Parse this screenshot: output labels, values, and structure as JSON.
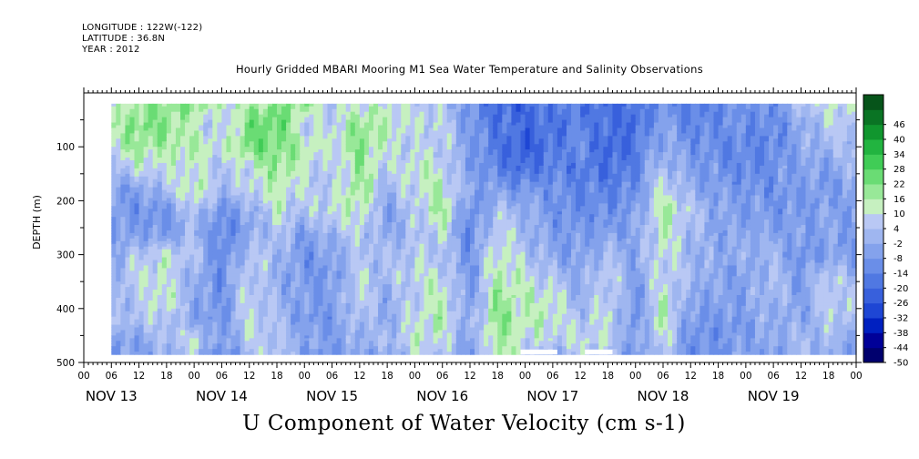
{
  "header": {
    "longitude": "LONGITUDE : 122W(-122)",
    "latitude": "LATITUDE : 36.8N",
    "year": "YEAR : 2012"
  },
  "chart_data": {
    "type": "heatmap",
    "title": "Hourly Gridded MBARI Mooring M1 Sea Water Temperature and Salinity Observations",
    "xlabel": "U Component of Water Velocity (cm s-1)",
    "ylabel": "DEPTH (m)",
    "ylim": [
      500,
      0
    ],
    "y_ticks": [
      100,
      200,
      300,
      400,
      500
    ],
    "y_tick_labels": [
      "100",
      "200",
      "300",
      "400",
      "500"
    ],
    "x_range_hours": [
      0,
      168
    ],
    "hour_tick_labels": [
      "00",
      "06",
      "12",
      "18",
      "00",
      "06",
      "12",
      "18",
      "00",
      "06",
      "12",
      "18",
      "00",
      "06",
      "12",
      "18",
      "00",
      "06",
      "12",
      "18",
      "00",
      "06",
      "12",
      "18",
      "00",
      "06",
      "12",
      "18",
      "00"
    ],
    "day_labels": [
      "NOV 13",
      "NOV 14",
      "NOV 15",
      "NOV 16",
      "NOV 17",
      "NOV 18",
      "NOV 19"
    ],
    "colorbar": {
      "levels": [
        "46",
        "40",
        "34",
        "28",
        "22",
        "16",
        "10",
        "4",
        "-2",
        "-8",
        "-14",
        "-20",
        "-26",
        "-32",
        "-38",
        "-44",
        "-50"
      ],
      "min": -50,
      "max": 52,
      "step": 6
    },
    "data_extent": {
      "depth_top": 20,
      "depth_bottom": 485,
      "hour_start": 6,
      "hour_end": 168
    },
    "missing_segments": [
      {
        "hour_start": 95,
        "hour_end": 103,
        "depth_top": 476,
        "depth_bottom": 485
      },
      {
        "hour_start": 109,
        "hour_end": 115,
        "depth_top": 476,
        "depth_bottom": 485
      }
    ],
    "columns": [
      {
        "hour": 6,
        "values": [
          8,
          14,
          14,
          2,
          -6,
          -6,
          -8,
          -4,
          2,
          0,
          0,
          -6,
          -6
        ]
      },
      {
        "hour": 12,
        "values": [
          18,
          22,
          18,
          10,
          -6,
          -10,
          -6,
          6,
          10,
          6,
          6,
          -4,
          -6
        ]
      },
      {
        "hour": 18,
        "values": [
          20,
          22,
          16,
          10,
          4,
          -8,
          -8,
          10,
          10,
          14,
          6,
          4,
          -2
        ]
      },
      {
        "hour": 24,
        "values": [
          22,
          10,
          16,
          10,
          16,
          6,
          2,
          6,
          -2,
          -2,
          -4,
          10,
          6
        ]
      },
      {
        "hour": 30,
        "values": [
          10,
          4,
          10,
          4,
          2,
          -10,
          -14,
          -14,
          -10,
          -10,
          -8,
          -8,
          -14
        ]
      },
      {
        "hour": 36,
        "values": [
          16,
          22,
          24,
          10,
          8,
          -2,
          -4,
          6,
          10,
          10,
          10,
          6,
          4
        ]
      },
      {
        "hour": 42,
        "values": [
          20,
          28,
          22,
          20,
          14,
          10,
          6,
          4,
          -2,
          0,
          4,
          6,
          6
        ]
      },
      {
        "hour": 48,
        "values": [
          20,
          6,
          16,
          10,
          8,
          4,
          -6,
          -10,
          -8,
          -6,
          -8,
          -2,
          -6
        ]
      },
      {
        "hour": 54,
        "values": [
          4,
          8,
          10,
          4,
          6,
          10,
          2,
          -4,
          -8,
          -6,
          -8,
          -6,
          -10
        ]
      },
      {
        "hour": 60,
        "values": [
          12,
          20,
          22,
          18,
          20,
          14,
          8,
          4,
          8,
          10,
          6,
          0,
          -2
        ]
      },
      {
        "hour": 66,
        "values": [
          10,
          14,
          10,
          6,
          0,
          -6,
          -4,
          4,
          2,
          -2,
          -4,
          2,
          -4
        ]
      },
      {
        "hour": 72,
        "values": [
          8,
          10,
          6,
          14,
          10,
          6,
          4,
          6,
          10,
          8,
          10,
          12,
          6
        ]
      },
      {
        "hour": 78,
        "values": [
          4,
          8,
          8,
          10,
          16,
          18,
          10,
          4,
          10,
          14,
          16,
          10,
          6
        ]
      },
      {
        "hour": 84,
        "values": [
          -8,
          -8,
          -6,
          -6,
          -4,
          -12,
          -14,
          -10,
          -8,
          -8,
          -4,
          -6,
          -8
        ]
      },
      {
        "hour": 90,
        "values": [
          -20,
          -16,
          -16,
          -14,
          -6,
          4,
          10,
          14,
          16,
          20,
          22,
          18,
          16
        ]
      },
      {
        "hour": 96,
        "values": [
          -22,
          -20,
          -24,
          -20,
          -8,
          0,
          2,
          6,
          10,
          12,
          14,
          10,
          8
        ]
      },
      {
        "hour": 102,
        "values": [
          -14,
          -18,
          -16,
          -14,
          -8,
          -10,
          -6,
          -4,
          4,
          14,
          12,
          8,
          -6
        ]
      },
      {
        "hour": 108,
        "values": [
          -16,
          -14,
          -10,
          -16,
          -14,
          -10,
          -8,
          -6,
          -4,
          -2,
          4,
          10,
          8
        ]
      },
      {
        "hour": 114,
        "values": [
          -20,
          -18,
          -22,
          -18,
          -14,
          -10,
          -6,
          4,
          10,
          10,
          10,
          8,
          4
        ]
      },
      {
        "hour": 120,
        "values": [
          -18,
          -20,
          -16,
          -14,
          -10,
          -6,
          -4,
          -4,
          -6,
          -8,
          -10,
          -6,
          -8
        ]
      },
      {
        "hour": 126,
        "values": [
          -10,
          -4,
          -2,
          4,
          12,
          18,
          14,
          12,
          10,
          14,
          16,
          10,
          6
        ]
      },
      {
        "hour": 132,
        "values": [
          -16,
          -14,
          -8,
          -6,
          -2,
          6,
          2,
          0,
          4,
          -4,
          -8,
          -10,
          -12
        ]
      },
      {
        "hour": 138,
        "values": [
          -12,
          -10,
          -12,
          -8,
          -6,
          -4,
          -4,
          -2,
          -4,
          -6,
          -8,
          -8,
          -10
        ]
      },
      {
        "hour": 144,
        "values": [
          -8,
          -10,
          -12,
          -14,
          -8,
          -6,
          -2,
          -2,
          -6,
          -4,
          -6,
          -6,
          -4
        ]
      },
      {
        "hour": 150,
        "values": [
          -10,
          -12,
          -14,
          -8,
          -10,
          -8,
          -4,
          2,
          4,
          4,
          0,
          -2,
          -6
        ]
      },
      {
        "hour": 156,
        "values": [
          6,
          -4,
          -2,
          -4,
          -6,
          -8,
          -6,
          -10,
          -8,
          -6,
          -4,
          2,
          4
        ]
      },
      {
        "hour": 162,
        "values": [
          10,
          6,
          2,
          -6,
          -8,
          -4,
          -4,
          -6,
          8,
          10,
          6,
          2,
          -2
        ]
      },
      {
        "hour": 168,
        "values": [
          12,
          8,
          4,
          2,
          -4,
          -6,
          -8,
          -6,
          -2,
          4,
          2,
          -2,
          -4
        ]
      }
    ],
    "value_depths": [
      20,
      60,
      100,
      140,
      180,
      220,
      260,
      300,
      340,
      380,
      420,
      460,
      485
    ]
  }
}
